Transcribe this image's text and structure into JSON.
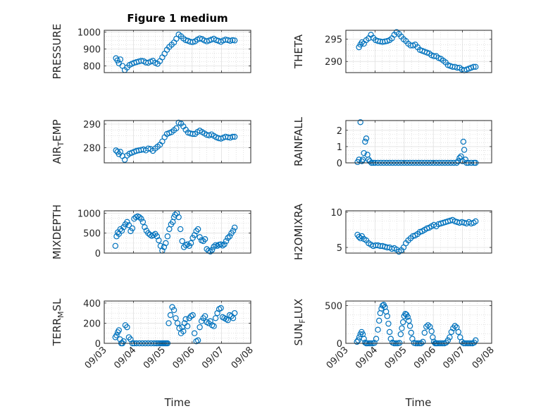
{
  "marker_color": "#0072BD",
  "chart_data": [
    {
      "type": "scatter",
      "title": "Figure 1 medium",
      "ylabel": "PRESSURE",
      "xlabel": "",
      "ylim": [
        760,
        1010
      ],
      "yticks": [
        800,
        900,
        1000
      ],
      "x": [
        3.4,
        3.45,
        3.5,
        3.55,
        3.62,
        3.7,
        3.78,
        3.86,
        3.94,
        4.02,
        4.1,
        4.18,
        4.26,
        4.34,
        4.42,
        4.5,
        4.58,
        4.66,
        4.74,
        4.82,
        4.9,
        4.98,
        5.06,
        5.14,
        5.22,
        5.3,
        5.38,
        5.46,
        5.54,
        5.62,
        5.7,
        5.78,
        5.86,
        5.94,
        6.02,
        6.1,
        6.18,
        6.26,
        6.34,
        6.42,
        6.5,
        6.58,
        6.66,
        6.74,
        6.82,
        6.9,
        6.98,
        7.06,
        7.14,
        7.22,
        7.3,
        7.38,
        7.45
      ],
      "y": [
        845,
        832,
        815,
        838,
        800,
        775,
        790,
        805,
        812,
        818,
        822,
        826,
        830,
        828,
        820,
        818,
        825,
        830,
        818,
        812,
        828,
        850,
        872,
        895,
        912,
        925,
        938,
        960,
        985,
        975,
        962,
        952,
        948,
        942,
        940,
        945,
        955,
        962,
        958,
        950,
        945,
        950,
        955,
        960,
        952,
        948,
        942,
        950,
        955,
        952,
        948,
        952,
        950
      ]
    },
    {
      "type": "scatter",
      "title": "",
      "ylabel": "THETA",
      "xlabel": "",
      "ylim": [
        287.5,
        297
      ],
      "yticks": [
        290,
        295
      ],
      "x": [
        3.45,
        3.5,
        3.55,
        3.62,
        3.7,
        3.78,
        3.86,
        3.94,
        4.02,
        4.1,
        4.18,
        4.26,
        4.34,
        4.42,
        4.5,
        4.58,
        4.66,
        4.74,
        4.82,
        4.9,
        4.98,
        5.06,
        5.14,
        5.22,
        5.3,
        5.38,
        5.46,
        5.54,
        5.62,
        5.7,
        5.78,
        5.86,
        5.94,
        6.02,
        6.1,
        6.18,
        6.26,
        6.34,
        6.42,
        6.5,
        6.58,
        6.66,
        6.74,
        6.82,
        6.9,
        6.98,
        7.06,
        7.14,
        7.22,
        7.3,
        7.38,
        7.45
      ],
      "y": [
        293.2,
        293.8,
        294.3,
        294.0,
        294.8,
        295.2,
        296.0,
        295.3,
        294.8,
        294.6,
        294.5,
        294.4,
        294.5,
        294.6,
        294.8,
        295.2,
        296.0,
        296.6,
        296.2,
        295.6,
        295.0,
        294.6,
        294.0,
        293.6,
        293.6,
        293.8,
        293.2,
        292.6,
        292.4,
        292.2,
        292.0,
        291.8,
        291.4,
        291.2,
        291.2,
        290.8,
        290.6,
        290.2,
        289.8,
        289.2,
        289.0,
        288.8,
        288.8,
        288.6,
        288.6,
        288.2,
        288.0,
        288.2,
        288.4,
        288.6,
        288.8,
        288.8
      ]
    },
    {
      "type": "scatter",
      "title": "",
      "ylabel": "AIR_TEMP",
      "xlabel": "",
      "ylim": [
        273.5,
        291.5
      ],
      "yticks": [
        280,
        290
      ],
      "x": [
        3.4,
        3.45,
        3.5,
        3.55,
        3.62,
        3.7,
        3.78,
        3.86,
        3.94,
        4.02,
        4.1,
        4.18,
        4.26,
        4.34,
        4.42,
        4.5,
        4.58,
        4.66,
        4.74,
        4.82,
        4.9,
        4.98,
        5.06,
        5.14,
        5.22,
        5.3,
        5.38,
        5.46,
        5.54,
        5.62,
        5.7,
        5.78,
        5.86,
        5.94,
        6.02,
        6.1,
        6.18,
        6.26,
        6.34,
        6.42,
        6.5,
        6.58,
        6.66,
        6.74,
        6.82,
        6.9,
        6.98,
        7.06,
        7.14,
        7.22,
        7.3,
        7.38,
        7.45
      ],
      "y": [
        278.8,
        278.2,
        277.2,
        278.2,
        276.4,
        274.8,
        276.6,
        277.4,
        277.8,
        278.2,
        278.6,
        278.8,
        279.0,
        279.2,
        278.8,
        279.6,
        279.4,
        278.6,
        279.6,
        280.4,
        281.2,
        282.6,
        284.4,
        285.8,
        286.2,
        286.6,
        287.4,
        288.2,
        290.6,
        290.2,
        289.0,
        287.6,
        286.4,
        286.0,
        285.8,
        285.8,
        286.6,
        287.2,
        286.6,
        286.0,
        285.4,
        285.2,
        285.6,
        285.0,
        284.4,
        284.0,
        283.8,
        284.2,
        284.6,
        284.4,
        284.2,
        284.6,
        284.6
      ]
    },
    {
      "type": "scatter",
      "title": "",
      "ylabel": "RAINFALL",
      "xlabel": "",
      "ylim": [
        0,
        2.6
      ],
      "yticks": [
        0,
        1,
        2
      ],
      "x": [
        3.4,
        3.45,
        3.5,
        3.55,
        3.58,
        3.62,
        3.66,
        3.7,
        3.74,
        3.78,
        3.82,
        3.88,
        3.94,
        4.0,
        4.1,
        4.2,
        4.3,
        4.4,
        4.5,
        4.6,
        4.7,
        4.8,
        4.9,
        5.0,
        5.1,
        5.2,
        5.3,
        5.4,
        5.5,
        5.6,
        5.7,
        5.8,
        5.9,
        6.0,
        6.1,
        6.2,
        6.3,
        6.4,
        6.5,
        6.6,
        6.7,
        6.8,
        6.85,
        6.9,
        6.95,
        7.0,
        7.03,
        7.06,
        7.1,
        7.14,
        7.2,
        7.3,
        7.4,
        7.45
      ],
      "y": [
        0.05,
        0.2,
        2.5,
        0.1,
        0.2,
        0.6,
        1.3,
        1.5,
        0.5,
        0.2,
        0.1,
        0,
        0,
        0,
        0,
        0,
        0,
        0,
        0,
        0,
        0,
        0,
        0,
        0,
        0,
        0,
        0,
        0,
        0,
        0,
        0,
        0,
        0,
        0,
        0,
        0,
        0,
        0,
        0,
        0,
        0,
        0,
        0.1,
        0.3,
        0.4,
        0.1,
        1.3,
        0.8,
        0.2,
        0,
        0,
        0,
        0,
        0
      ]
    },
    {
      "type": "scatter",
      "title": "",
      "ylabel": "MIXDEPTH",
      "xlabel": "",
      "ylim": [
        0,
        1060
      ],
      "yticks": [
        0,
        500,
        1000
      ],
      "x": [
        3.38,
        3.42,
        3.46,
        3.5,
        3.55,
        3.6,
        3.66,
        3.72,
        3.78,
        3.84,
        3.9,
        3.96,
        4.02,
        4.08,
        4.14,
        4.2,
        4.26,
        4.32,
        4.38,
        4.44,
        4.5,
        4.56,
        4.62,
        4.68,
        4.74,
        4.8,
        4.86,
        4.92,
        4.98,
        5.04,
        5.1,
        5.16,
        5.22,
        5.28,
        5.34,
        5.38,
        5.42,
        5.48,
        5.54,
        5.6,
        5.66,
        5.72,
        5.78,
        5.84,
        5.9,
        5.96,
        6.02,
        6.08,
        6.14,
        6.2,
        6.26,
        6.32,
        6.38,
        6.44,
        6.5,
        6.56,
        6.62,
        6.68,
        6.74,
        6.8,
        6.86,
        6.92,
        6.98,
        7.04,
        7.1,
        7.16,
        7.22,
        7.28,
        7.34,
        7.4,
        7.45
      ],
      "y": [
        180,
        420,
        520,
        480,
        600,
        560,
        650,
        720,
        780,
        700,
        550,
        620,
        860,
        900,
        920,
        900,
        860,
        780,
        650,
        560,
        500,
        460,
        430,
        450,
        480,
        420,
        320,
        180,
        60,
        150,
        250,
        420,
        600,
        720,
        780,
        900,
        960,
        1000,
        900,
        600,
        300,
        150,
        200,
        220,
        180,
        250,
        380,
        450,
        550,
        600,
        400,
        320,
        300,
        350,
        100,
        60,
        40,
        80,
        160,
        200,
        180,
        210,
        220,
        190,
        220,
        300,
        380,
        420,
        500,
        560,
        640
      ]
    },
    {
      "type": "scatter",
      "title": "",
      "ylabel": "H2OMIXRA",
      "xlabel": "",
      "ylim": [
        4.2,
        10.2
      ],
      "yticks": [
        5,
        10
      ],
      "x": [
        3.4,
        3.45,
        3.5,
        3.55,
        3.62,
        3.7,
        3.78,
        3.86,
        3.94,
        4.02,
        4.1,
        4.18,
        4.26,
        4.34,
        4.42,
        4.5,
        4.58,
        4.66,
        4.74,
        4.82,
        4.9,
        4.98,
        5.06,
        5.14,
        5.22,
        5.3,
        5.38,
        5.46,
        5.54,
        5.62,
        5.7,
        5.78,
        5.86,
        5.94,
        6.02,
        6.1,
        6.18,
        6.26,
        6.34,
        6.42,
        6.5,
        6.58,
        6.66,
        6.74,
        6.82,
        6.9,
        6.98,
        7.06,
        7.14,
        7.22,
        7.3,
        7.38,
        7.45
      ],
      "y": [
        6.8,
        6.5,
        6.3,
        6.6,
        6.2,
        6.0,
        5.6,
        5.4,
        5.2,
        5.3,
        5.3,
        5.2,
        5.2,
        5.1,
        5.0,
        5.0,
        4.8,
        4.9,
        4.7,
        4.4,
        4.6,
        5.0,
        5.6,
        6.0,
        6.3,
        6.6,
        6.7,
        6.9,
        7.2,
        7.3,
        7.5,
        7.7,
        7.8,
        8.0,
        8.2,
        8.0,
        8.3,
        8.4,
        8.5,
        8.6,
        8.7,
        8.8,
        8.9,
        8.7,
        8.6,
        8.5,
        8.6,
        8.5,
        8.4,
        8.6,
        8.4,
        8.5,
        8.7
      ]
    },
    {
      "type": "scatter",
      "title": "",
      "ylabel": "TERR_MSL",
      "xlabel": "Time",
      "ylim": [
        0,
        420
      ],
      "yticks": [
        0,
        200,
        400
      ],
      "xticks": [
        "09/03",
        "09/04",
        "09/05",
        "09/06",
        "09/07",
        "09/08"
      ],
      "x": [
        3.38,
        3.42,
        3.46,
        3.5,
        3.54,
        3.58,
        3.62,
        3.66,
        3.72,
        3.78,
        3.84,
        3.9,
        3.96,
        4.02,
        4.1,
        4.2,
        4.3,
        4.4,
        4.5,
        4.6,
        4.7,
        4.78,
        4.84,
        4.9,
        4.96,
        5.0,
        5.04,
        5.08,
        5.12,
        5.16,
        5.2,
        5.26,
        5.32,
        5.38,
        5.44,
        5.5,
        5.56,
        5.62,
        5.66,
        5.7,
        5.74,
        5.78,
        5.84,
        5.9,
        5.96,
        6.02,
        6.08,
        6.14,
        6.2,
        6.26,
        6.32,
        6.38,
        6.44,
        6.5,
        6.56,
        6.62,
        6.68,
        6.74,
        6.8,
        6.86,
        6.92,
        6.98,
        7.04,
        7.1,
        7.16,
        7.22,
        7.28,
        7.34,
        7.4,
        7.45
      ],
      "y": [
        60,
        80,
        110,
        130,
        40,
        0,
        0,
        20,
        180,
        160,
        60,
        40,
        0,
        0,
        0,
        0,
        0,
        0,
        0,
        0,
        0,
        0,
        0,
        0,
        0,
        0,
        0,
        0,
        0,
        0,
        200,
        280,
        360,
        330,
        250,
        200,
        150,
        100,
        160,
        120,
        200,
        240,
        170,
        250,
        270,
        280,
        100,
        20,
        30,
        160,
        220,
        250,
        270,
        210,
        200,
        220,
        180,
        170,
        250,
        300,
        340,
        350,
        260,
        250,
        240,
        230,
        280,
        270,
        250,
        300
      ]
    },
    {
      "type": "scatter",
      "title": "",
      "ylabel": "SUN_FLUX",
      "xlabel": "Time",
      "ylim": [
        0,
        560
      ],
      "yticks": [
        0,
        500
      ],
      "xticks": [
        "09/03",
        "09/04",
        "09/05",
        "09/06",
        "09/07",
        "09/08"
      ],
      "x": [
        3.38,
        3.42,
        3.46,
        3.5,
        3.54,
        3.58,
        3.62,
        3.66,
        3.7,
        3.74,
        3.8,
        3.86,
        3.92,
        3.98,
        4.04,
        4.1,
        4.14,
        4.18,
        4.22,
        4.26,
        4.3,
        4.34,
        4.38,
        4.42,
        4.46,
        4.5,
        4.54,
        4.6,
        4.66,
        4.72,
        4.78,
        4.84,
        4.88,
        4.92,
        4.96,
        5.0,
        5.04,
        5.08,
        5.12,
        5.16,
        5.2,
        5.24,
        5.28,
        5.34,
        5.4,
        5.46,
        5.52,
        5.58,
        5.64,
        5.7,
        5.76,
        5.82,
        5.88,
        5.94,
        5.98,
        6.02,
        6.06,
        6.1,
        6.14,
        6.2,
        6.26,
        6.32,
        6.38,
        6.44,
        6.5,
        6.56,
        6.62,
        6.68,
        6.74,
        6.8,
        6.86,
        6.92,
        6.98,
        7.04,
        7.1,
        7.16,
        7.22,
        7.28,
        7.34,
        7.4,
        7.45
      ],
      "y": [
        20,
        40,
        80,
        120,
        150,
        120,
        60,
        10,
        0,
        0,
        0,
        0,
        0,
        5,
        60,
        180,
        300,
        400,
        460,
        500,
        510,
        480,
        420,
        360,
        260,
        150,
        60,
        10,
        0,
        0,
        0,
        5,
        120,
        200,
        280,
        360,
        390,
        380,
        350,
        300,
        230,
        140,
        60,
        5,
        0,
        0,
        0,
        0,
        20,
        140,
        220,
        240,
        220,
        160,
        80,
        20,
        0,
        0,
        0,
        0,
        0,
        0,
        0,
        10,
        40,
        80,
        150,
        200,
        230,
        210,
        150,
        80,
        20,
        0,
        0,
        0,
        0,
        0,
        0,
        10,
        40
      ]
    }
  ]
}
